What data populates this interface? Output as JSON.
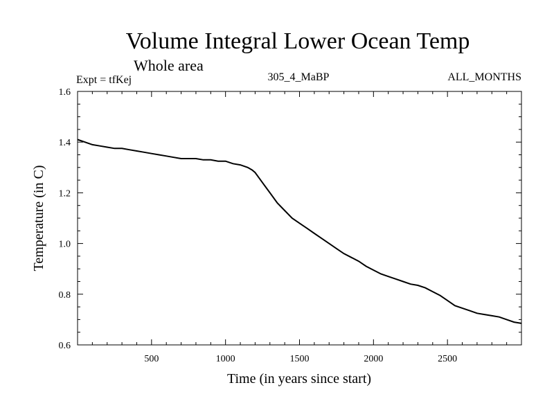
{
  "chart_data": {
    "type": "line",
    "title": "Volume Integral Lower Ocean Temp",
    "subtitle": "Whole area",
    "experiment": "Expt = tfKej",
    "period": "305_4_MaBP",
    "months": "ALL_MONTHS",
    "xlabel": "Time (in years since start)",
    "ylabel": "Temperature (in C)",
    "xlim": [
      0,
      3000
    ],
    "ylim": [
      0.6,
      1.6
    ],
    "x_ticks": [
      500,
      1000,
      1500,
      2000,
      2500
    ],
    "x_tick_labels": [
      "500",
      "1000",
      "1500",
      "2000",
      "2500"
    ],
    "y_ticks": [
      0.6,
      0.8,
      1.0,
      1.2,
      1.4,
      1.6
    ],
    "y_tick_labels": [
      "0.6",
      "0.8",
      "1.0",
      "1.2",
      "1.4",
      "1.6"
    ],
    "grid": false,
    "series": [
      {
        "x": [
          0,
          50,
          100,
          150,
          200,
          250,
          300,
          350,
          400,
          450,
          500,
          550,
          600,
          650,
          700,
          750,
          800,
          850,
          900,
          950,
          1000,
          1050,
          1100,
          1150,
          1180,
          1200,
          1250,
          1300,
          1350,
          1400,
          1450,
          1500,
          1550,
          1600,
          1650,
          1700,
          1750,
          1800,
          1850,
          1900,
          1950,
          2000,
          2050,
          2100,
          2150,
          2200,
          2250,
          2300,
          2350,
          2400,
          2450,
          2500,
          2550,
          2600,
          2650,
          2700,
          2750,
          2800,
          2850,
          2900,
          2950,
          3000
        ],
        "y": [
          1.41,
          1.4,
          1.39,
          1.385,
          1.38,
          1.375,
          1.375,
          1.37,
          1.365,
          1.36,
          1.355,
          1.35,
          1.345,
          1.34,
          1.335,
          1.335,
          1.335,
          1.33,
          1.33,
          1.325,
          1.325,
          1.315,
          1.31,
          1.3,
          1.29,
          1.28,
          1.24,
          1.2,
          1.16,
          1.13,
          1.1,
          1.08,
          1.06,
          1.04,
          1.02,
          1.0,
          0.98,
          0.96,
          0.945,
          0.93,
          0.91,
          0.895,
          0.88,
          0.87,
          0.86,
          0.85,
          0.84,
          0.835,
          0.825,
          0.81,
          0.795,
          0.775,
          0.755,
          0.745,
          0.735,
          0.725,
          0.72,
          0.715,
          0.71,
          0.7,
          0.69,
          0.685
        ]
      }
    ]
  }
}
